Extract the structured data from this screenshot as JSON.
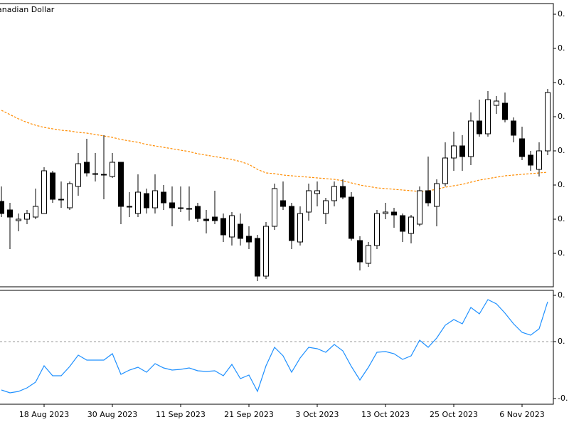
{
  "chart_data": [
    {
      "type": "candlestick",
      "title": "anadian Dollar",
      "open": [
        0.717,
        0.705,
        0.69,
        0.692,
        0.695,
        0.7,
        0.757,
        0.72,
        0.708,
        0.738,
        0.772,
        0.756,
        0.755,
        0.752,
        0.772,
        0.71,
        0.7,
        0.728,
        0.708,
        0.73,
        0.715,
        0.708,
        0.707,
        0.71,
        0.692,
        0.695,
        0.693,
        0.667,
        0.685,
        0.668,
        0.665,
        0.612,
        0.682,
        0.718,
        0.71,
        0.66,
        0.702,
        0.728,
        0.7,
        0.718,
        0.738,
        0.723,
        0.662,
        0.63,
        0.655,
        0.7,
        0.702,
        0.697,
        0.672,
        0.685,
        0.732,
        0.71,
        0.742,
        0.778,
        0.795,
        0.78,
        0.83,
        0.812,
        0.852,
        0.855,
        0.83,
        0.805,
        0.782,
        0.762,
        0.788
      ],
      "high": [
        0.738,
        0.715,
        0.7,
        0.705,
        0.735,
        0.765,
        0.76,
        0.745,
        0.745,
        0.785,
        0.805,
        0.785,
        0.81,
        0.785,
        0.772,
        0.73,
        0.755,
        0.735,
        0.755,
        0.74,
        0.738,
        0.738,
        0.738,
        0.715,
        0.705,
        0.732,
        0.7,
        0.702,
        0.7,
        0.682,
        0.67,
        0.688,
        0.742,
        0.745,
        0.715,
        0.71,
        0.742,
        0.745,
        0.722,
        0.745,
        0.748,
        0.73,
        0.668,
        0.66,
        0.705,
        0.715,
        0.708,
        0.7,
        0.698,
        0.738,
        0.78,
        0.748,
        0.8,
        0.815,
        0.81,
        0.842,
        0.86,
        0.872,
        0.865,
        0.87,
        0.835,
        0.822,
        0.788,
        0.8,
        0.875
      ],
      "low": [
        0.695,
        0.65,
        0.675,
        0.685,
        0.692,
        0.7,
        0.715,
        0.708,
        0.705,
        0.725,
        0.752,
        0.745,
        0.72,
        0.75,
        0.685,
        0.695,
        0.695,
        0.7,
        0.7,
        0.705,
        0.682,
        0.702,
        0.69,
        0.688,
        0.672,
        0.685,
        0.66,
        0.655,
        0.655,
        0.65,
        0.605,
        0.608,
        0.677,
        0.705,
        0.65,
        0.655,
        0.69,
        0.71,
        0.685,
        0.71,
        0.72,
        0.662,
        0.62,
        0.625,
        0.65,
        0.692,
        0.68,
        0.66,
        0.658,
        0.682,
        0.71,
        0.682,
        0.738,
        0.76,
        0.76,
        0.768,
        0.808,
        0.808,
        0.84,
        0.828,
        0.8,
        0.775,
        0.76,
        0.752,
        0.782
      ],
      "close": [
        0.7,
        0.695,
        0.692,
        0.7,
        0.71,
        0.76,
        0.72,
        0.72,
        0.742,
        0.77,
        0.757,
        0.756,
        0.755,
        0.772,
        0.71,
        0.71,
        0.73,
        0.708,
        0.732,
        0.715,
        0.708,
        0.708,
        0.707,
        0.693,
        0.69,
        0.69,
        0.67,
        0.697,
        0.665,
        0.66,
        0.612,
        0.682,
        0.735,
        0.71,
        0.662,
        0.7,
        0.732,
        0.732,
        0.718,
        0.738,
        0.723,
        0.665,
        0.632,
        0.655,
        0.7,
        0.702,
        0.698,
        0.675,
        0.695,
        0.732,
        0.715,
        0.742,
        0.778,
        0.795,
        0.78,
        0.83,
        0.812,
        0.86,
        0.858,
        0.832,
        0.81,
        0.78,
        0.768,
        0.788,
        0.87
      ],
      "up_color": "#ffffff",
      "down_color": "#000000",
      "ylim": [
        0.597,
        0.995
      ],
      "yticks": [
        {
          "value": 0.98,
          "label": "0."
        },
        {
          "value": 0.932,
          "label": "0."
        },
        {
          "value": 0.884,
          "label": "0."
        },
        {
          "value": 0.836,
          "label": "0."
        },
        {
          "value": 0.788,
          "label": "0."
        },
        {
          "value": 0.74,
          "label": "0."
        },
        {
          "value": 0.692,
          "label": "0."
        },
        {
          "value": 0.644,
          "label": "0."
        }
      ],
      "overlay": {
        "color": "#ff8c00",
        "dashed": true,
        "values": [
          0.845,
          0.839,
          0.833,
          0.828,
          0.824,
          0.821,
          0.819,
          0.817,
          0.816,
          0.814,
          0.813,
          0.811,
          0.809,
          0.807,
          0.804,
          0.802,
          0.8,
          0.797,
          0.795,
          0.793,
          0.791,
          0.789,
          0.787,
          0.784,
          0.782,
          0.78,
          0.778,
          0.776,
          0.773,
          0.769,
          0.762,
          0.757,
          0.756,
          0.754,
          0.753,
          0.752,
          0.751,
          0.75,
          0.749,
          0.748,
          0.746,
          0.743,
          0.74,
          0.738,
          0.736,
          0.735,
          0.734,
          0.733,
          0.732,
          0.731,
          0.732,
          0.734,
          0.737,
          0.739,
          0.741,
          0.744,
          0.747,
          0.749,
          0.751,
          0.753,
          0.754,
          0.755,
          0.756,
          0.757,
          0.758
        ]
      }
    },
    {
      "type": "line",
      "categories": [
        null,
        null,
        null,
        null,
        null,
        "18 Aug 2023",
        null,
        null,
        null,
        null,
        null,
        null,
        null,
        "30 Aug 2023",
        null,
        null,
        null,
        null,
        null,
        null,
        null,
        "11 Sep 2023",
        null,
        null,
        null,
        null,
        null,
        null,
        null,
        "21 Sep 2023",
        null,
        null,
        null,
        null,
        null,
        null,
        null,
        "3 Oct 2023",
        null,
        null,
        null,
        null,
        null,
        null,
        null,
        "13 Oct 2023",
        null,
        null,
        null,
        null,
        null,
        null,
        null,
        "25 Oct 2023",
        null,
        null,
        null,
        null,
        null,
        null,
        null,
        "6 Nov 2023",
        null,
        null,
        null
      ],
      "color": "#1e90ff",
      "values": [
        -0.068,
        -0.072,
        -0.07,
        -0.065,
        -0.057,
        -0.034,
        -0.048,
        -0.048,
        -0.035,
        -0.019,
        -0.026,
        -0.026,
        -0.026,
        -0.017,
        -0.046,
        -0.04,
        -0.036,
        -0.043,
        -0.031,
        -0.037,
        -0.04,
        -0.039,
        -0.037,
        -0.041,
        -0.042,
        -0.041,
        -0.048,
        -0.032,
        -0.052,
        -0.047,
        -0.07,
        -0.034,
        -0.008,
        -0.02,
        -0.043,
        -0.023,
        -0.008,
        -0.01,
        -0.015,
        -0.004,
        -0.013,
        -0.035,
        -0.054,
        -0.036,
        -0.015,
        -0.014,
        -0.017,
        -0.025,
        -0.02,
        0.002,
        -0.008,
        0.005,
        0.023,
        0.031,
        0.025,
        0.048,
        0.039,
        0.059,
        0.053,
        0.04,
        0.025,
        0.013,
        0.009,
        0.018,
        0.056
      ],
      "ylim": [
        -0.088,
        0.072
      ],
      "yticks": [
        {
          "value": 0.065,
          "label": "0."
        },
        {
          "value": 0,
          "label": "0."
        },
        {
          "value": -0.08,
          "label": "-0."
        }
      ],
      "reference_line": 0
    }
  ]
}
